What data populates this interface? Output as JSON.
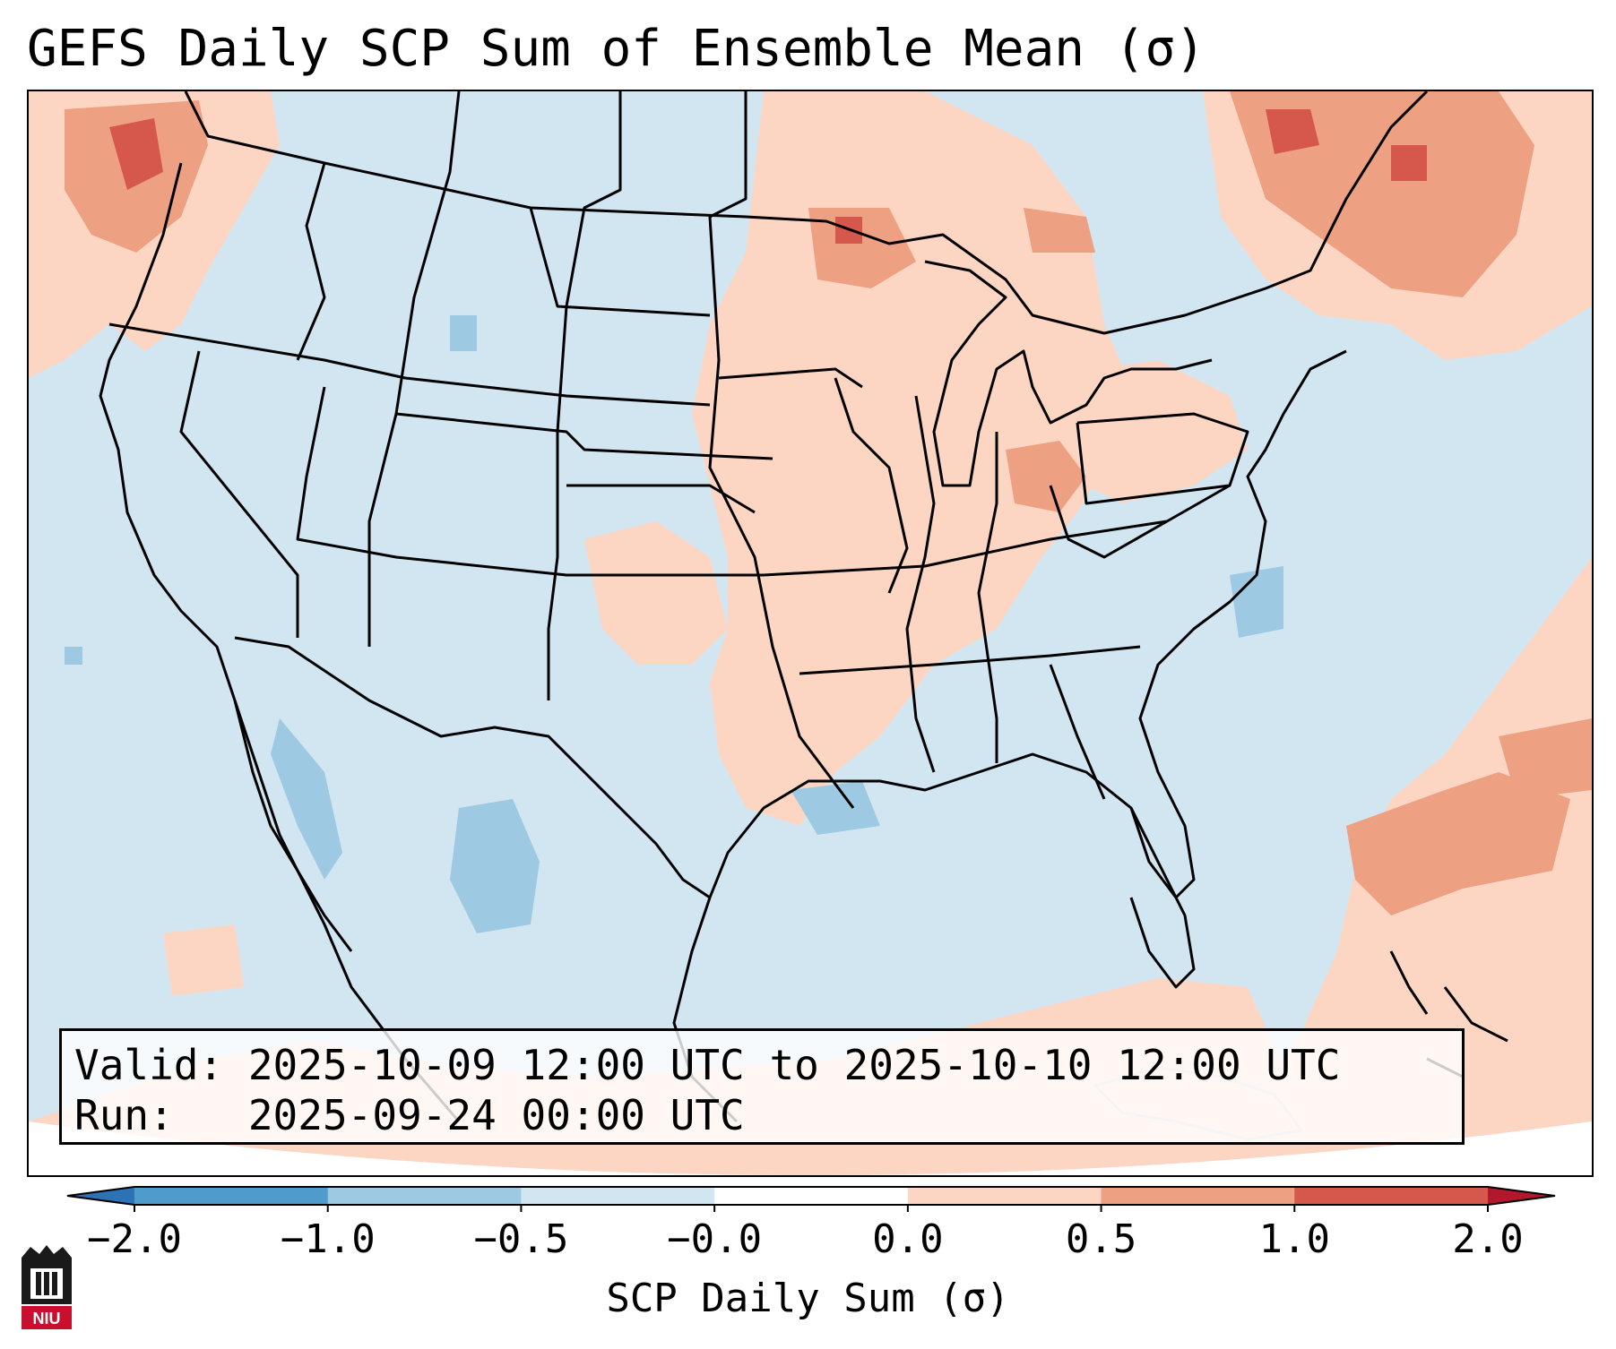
{
  "title": "GEFS Daily SCP Sum of Ensemble Mean (σ)",
  "info": {
    "valid_line": "Valid: 2025-10-09 12:00 UTC to 2025-10-10 12:00 UTC",
    "run_line": "Run:   2025-09-24 00:00 UTC"
  },
  "colorbar": {
    "label": "SCP Daily Sum (σ)",
    "tick_labels": [
      "−2.0",
      "−1.0",
      "−0.5",
      "−0.0",
      "0.0",
      "0.5",
      "1.0",
      "2.0"
    ],
    "colors": [
      "#2b73b4",
      "#4f9bcb",
      "#9ec9e2",
      "#d2e6f1",
      "#ffffff",
      "#fdd6c3",
      "#eea083",
      "#d6574b",
      "#b2182b"
    ],
    "extend": "both"
  },
  "map": {
    "projection": "Lambert Conformal (CONUS)",
    "background_value_color": "#d2e6f1",
    "outside_domain_color": "#ffffff",
    "regions_elevated": [
      "Pacific Northwest",
      "Upper Midwest",
      "Mid-Mississippi Valley",
      "Quebec",
      "Western Atlantic",
      "Caribbean"
    ]
  },
  "logo": {
    "text": "NIU"
  }
}
